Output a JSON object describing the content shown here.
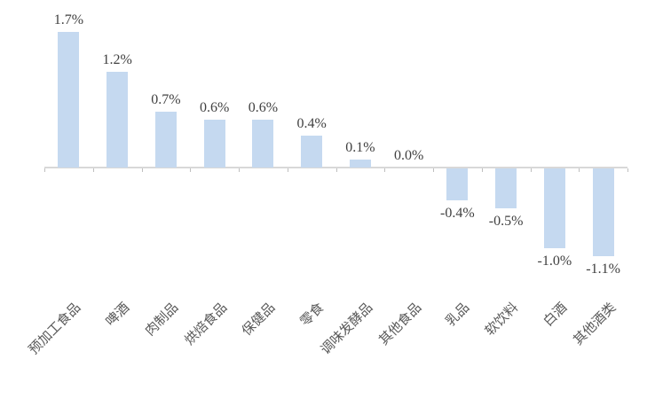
{
  "chart_data": {
    "type": "bar",
    "title": "",
    "xlabel": "",
    "ylabel": "",
    "grid": false,
    "legend": false,
    "value_suffix": "%",
    "categories": [
      "预加工食品",
      "啤酒",
      "肉制品",
      "烘焙食品",
      "保健品",
      "零食",
      "调味发酵品",
      "其他食品",
      "乳品",
      "软饮料",
      "白酒",
      "其他酒类"
    ],
    "values": [
      1.7,
      1.2,
      0.7,
      0.6,
      0.6,
      0.4,
      0.1,
      0.0,
      -0.4,
      -0.5,
      -1.0,
      -1.1
    ],
    "labels": [
      "1.7%",
      "1.2%",
      "0.7%",
      "0.6%",
      "0.6%",
      "0.4%",
      "0.1%",
      "0.0%",
      "-0.4%",
      "-0.5%",
      "-1.0%",
      "-1.1%"
    ],
    "colors": {
      "bar_fill": "#C5D9F0",
      "axis_line": "#D8D8D8",
      "axis_tick": "#BFBFBF",
      "data_label": "#404040",
      "category_label": "#595959"
    }
  }
}
